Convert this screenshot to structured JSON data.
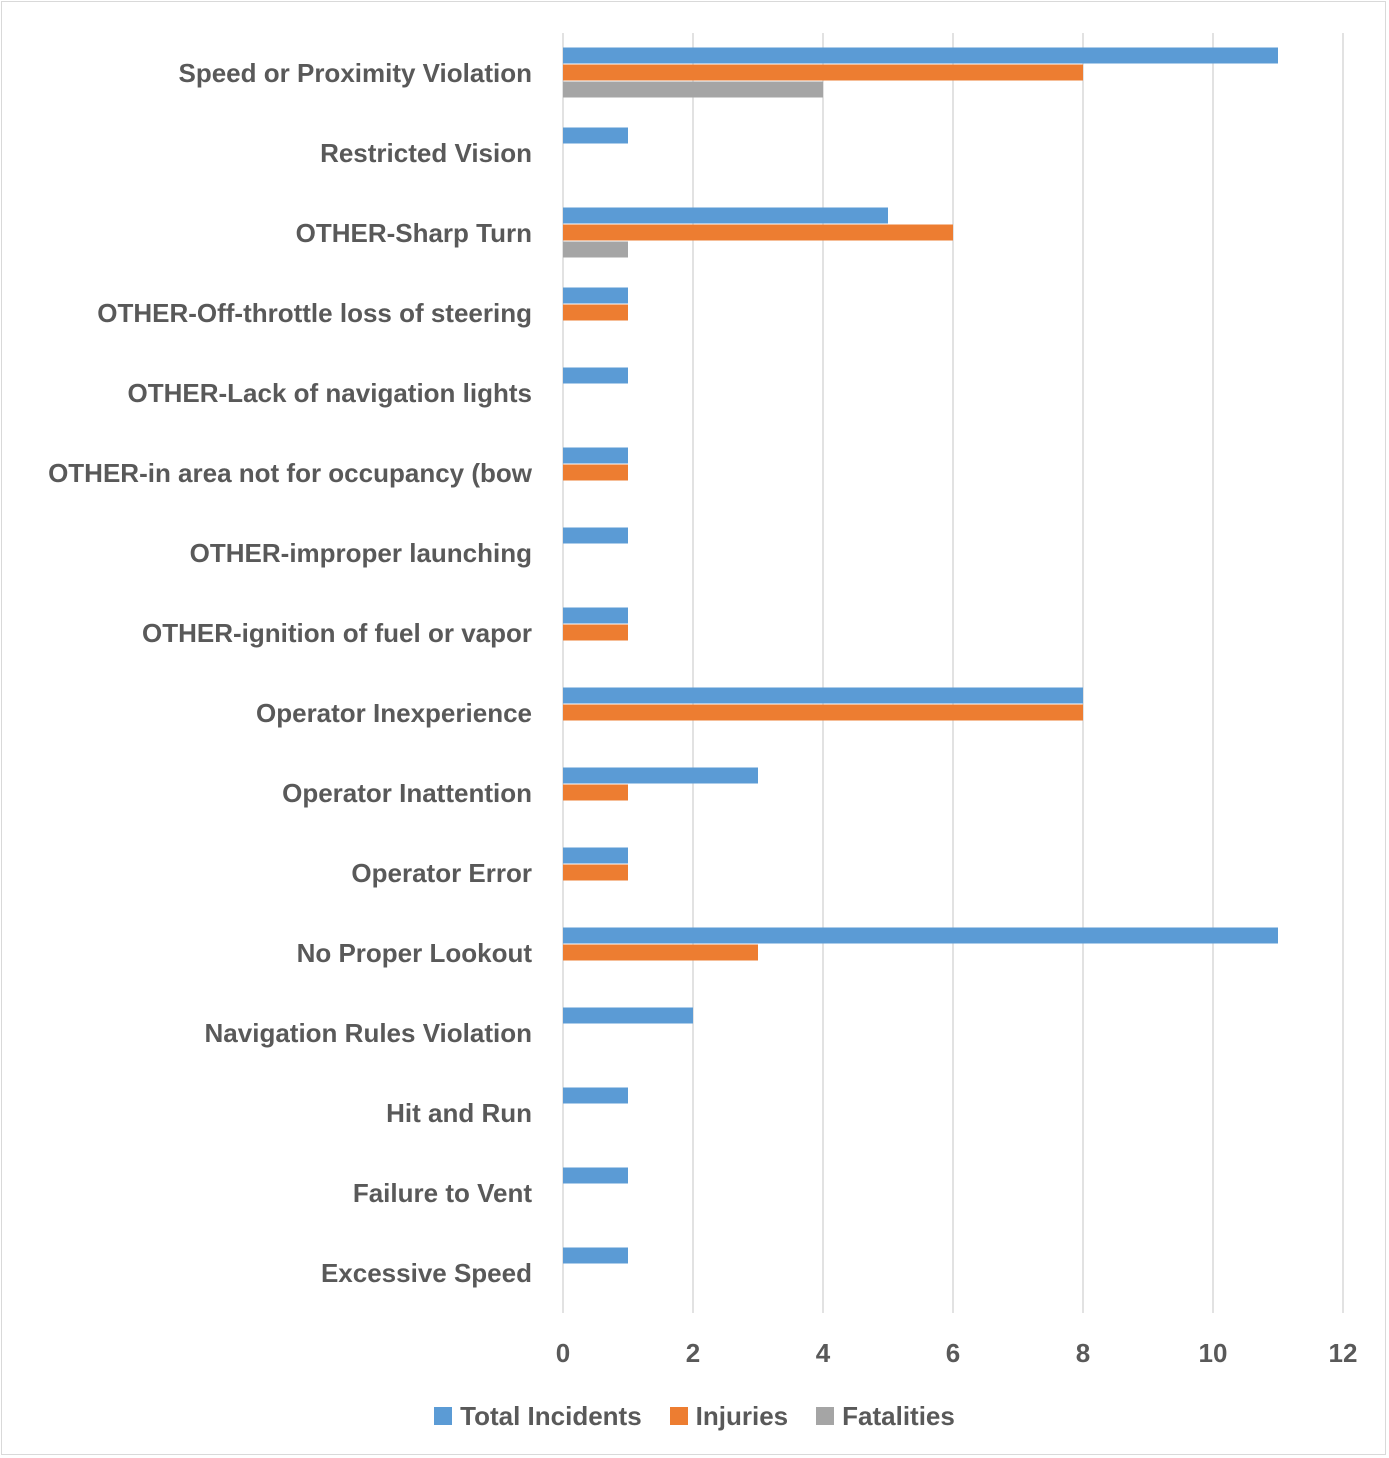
{
  "chart_data": {
    "type": "bar",
    "orientation": "horizontal",
    "categories": [
      "Speed or Proximity Violation",
      "Restricted Vision",
      "OTHER-Sharp Turn",
      "OTHER-Off-throttle loss of steering",
      "OTHER-Lack of navigation lights",
      "OTHER-in area not for occupancy (bow",
      "OTHER-improper launching",
      "OTHER-ignition of fuel or vapor",
      "Operator Inexperience",
      "Operator Inattention",
      "Operator Error",
      "No Proper Lookout",
      "Navigation Rules Violation",
      "Hit and Run",
      "Failure to Vent",
      "Excessive Speed"
    ],
    "series": [
      {
        "name": "Total Incidents",
        "color": "#5b9bd5",
        "values": [
          11,
          1,
          5,
          1,
          1,
          1,
          1,
          1,
          8,
          3,
          1,
          11,
          2,
          1,
          1,
          1
        ]
      },
      {
        "name": "Injuries",
        "color": "#ed7d31",
        "values": [
          8,
          0,
          6,
          1,
          0,
          1,
          0,
          1,
          8,
          1,
          1,
          3,
          0,
          0,
          0,
          0
        ]
      },
      {
        "name": "Fatalities",
        "color": "#a5a5a5",
        "values": [
          4,
          0,
          1,
          0,
          0,
          0,
          0,
          0,
          0,
          0,
          0,
          0,
          0,
          0,
          0,
          0
        ]
      }
    ],
    "xlim": [
      0,
      12
    ],
    "xticks": [
      "0",
      "2",
      "4",
      "6",
      "8",
      "10",
      "12"
    ],
    "grid": true,
    "legend": "bottom",
    "gridline_color": "#d9d9d9",
    "text_color": "#595959"
  }
}
